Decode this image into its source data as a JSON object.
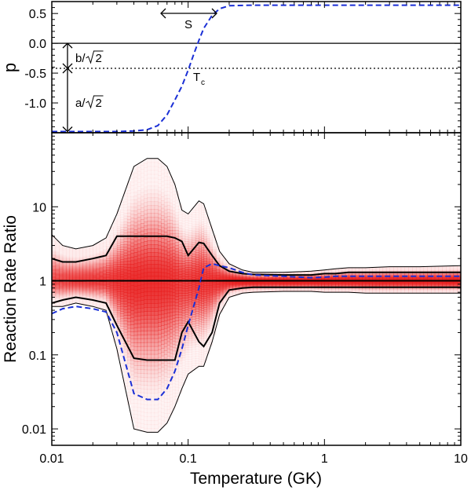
{
  "chart_data": [
    {
      "type": "line",
      "panel": "top",
      "ylabel": "p",
      "yticks": [
        "0.5",
        "0.0",
        "-0.5",
        "-1.0"
      ],
      "ytick_values": [
        0.5,
        0.0,
        -0.5,
        -1.0
      ],
      "ylim": [
        -1.5,
        0.7
      ],
      "xlim": [
        0.01,
        10
      ],
      "xscale": "log",
      "reference_lines": [
        {
          "name": "zero",
          "y": 0.0,
          "style": "solid"
        },
        {
          "name": "offset",
          "y": -0.42,
          "style": "dotted"
        }
      ],
      "series": [
        {
          "name": "p(T)",
          "style": "dashed",
          "color": "#1a2fd6",
          "x": [
            0.01,
            0.015,
            0.02,
            0.03,
            0.04,
            0.05,
            0.06,
            0.07,
            0.08,
            0.09,
            0.1,
            0.11,
            0.12,
            0.13,
            0.15,
            0.17,
            0.2,
            0.3,
            1,
            10
          ],
          "y": [
            -1.48,
            -1.48,
            -1.48,
            -1.48,
            -1.47,
            -1.45,
            -1.38,
            -1.2,
            -0.95,
            -0.72,
            -0.45,
            -0.18,
            0.05,
            0.25,
            0.47,
            0.58,
            0.63,
            0.64,
            0.64,
            0.64
          ]
        }
      ],
      "annotations": [
        {
          "name": "S",
          "text": "S"
        },
        {
          "name": "Tc",
          "text": "T",
          "subscript": "c"
        },
        {
          "name": "b-label",
          "text": "b/",
          "radicand": "2"
        },
        {
          "name": "a-label",
          "text": "a/",
          "radicand": "2"
        }
      ]
    },
    {
      "type": "area",
      "panel": "bottom",
      "xlabel": "Temperature (GK)",
      "ylabel": "Reaction Rate Ratio",
      "xscale": "log",
      "yscale": "log",
      "xlim": [
        0.01,
        10
      ],
      "ylim": [
        0.006,
        100
      ],
      "xticks": [
        "0.01",
        "0.1",
        "1",
        "10"
      ],
      "xtick_values": [
        0.01,
        0.1,
        1,
        10
      ],
      "yticks": [
        "0.01",
        "0.1",
        "1",
        "10"
      ],
      "ytick_values": [
        0.01,
        0.1,
        1,
        10
      ],
      "x": [
        0.01,
        0.012,
        0.015,
        0.02,
        0.025,
        0.03,
        0.04,
        0.05,
        0.06,
        0.07,
        0.08,
        0.09,
        0.1,
        0.12,
        0.13,
        0.15,
        0.17,
        0.2,
        0.25,
        0.3,
        0.5,
        0.8,
        1,
        1.2,
        1.5,
        2,
        3,
        5,
        10
      ],
      "series": [
        {
          "name": "upper-outer",
          "style": "thin",
          "values": [
            4.2,
            3.0,
            2.7,
            3.0,
            3.8,
            8,
            35,
            45,
            45,
            35,
            20,
            9,
            8,
            12,
            11,
            5,
            2.5,
            1.7,
            1.4,
            1.3,
            1.3,
            1.35,
            1.4,
            1.45,
            1.5,
            1.5,
            1.55,
            1.55,
            1.6
          ]
        },
        {
          "name": "upper-median",
          "style": "thick",
          "values": [
            2.0,
            1.8,
            1.8,
            2.0,
            2.2,
            4,
            4,
            4,
            4,
            4,
            3.8,
            3.4,
            2.2,
            3.3,
            3.2,
            2.2,
            1.6,
            1.35,
            1.25,
            1.22,
            1.2,
            1.2,
            1.25,
            1.25,
            1.3,
            1.3,
            1.3,
            1.3,
            1.3
          ]
        },
        {
          "name": "recommended",
          "style": "thick",
          "values": [
            1,
            1,
            1,
            1,
            1,
            1,
            1,
            1,
            1,
            1,
            1,
            1,
            1,
            1,
            1,
            1,
            1,
            1,
            1,
            1,
            1,
            1,
            1,
            1,
            1,
            1,
            1,
            1,
            1
          ]
        },
        {
          "name": "lower-median",
          "style": "thick",
          "values": [
            0.5,
            0.55,
            0.6,
            0.55,
            0.5,
            0.25,
            0.09,
            0.085,
            0.085,
            0.085,
            0.085,
            0.2,
            0.28,
            0.15,
            0.13,
            0.2,
            0.5,
            0.75,
            0.8,
            0.82,
            0.82,
            0.82,
            0.82,
            0.82,
            0.82,
            0.82,
            0.82,
            0.82,
            0.82
          ]
        },
        {
          "name": "lower-outer",
          "style": "thin",
          "values": [
            0.45,
            0.45,
            0.5,
            0.45,
            0.4,
            0.12,
            0.01,
            0.009,
            0.009,
            0.012,
            0.02,
            0.035,
            0.055,
            0.07,
            0.07,
            0.15,
            0.35,
            0.6,
            0.68,
            0.7,
            0.72,
            0.72,
            0.7,
            0.7,
            0.7,
            0.68,
            0.68,
            0.68,
            0.68
          ]
        },
        {
          "name": "dashed-sample",
          "style": "dashed",
          "color": "#1a2fd6",
          "values": [
            0.36,
            0.42,
            0.45,
            0.42,
            0.38,
            0.2,
            0.03,
            0.025,
            0.025,
            0.035,
            0.06,
            0.12,
            0.25,
            0.8,
            1.5,
            1.7,
            1.6,
            1.5,
            1.3,
            1.2,
            1.15,
            1.1,
            1.12,
            1.15,
            1.15,
            1.15,
            1.15,
            1.15,
            1.15
          ]
        }
      ],
      "density": {
        "color": "#e81e1e",
        "peak_intensity": [
          0.75,
          0.75,
          0.78,
          0.82,
          0.85,
          0.95,
          1.0,
          1.0,
          1.0,
          0.98,
          0.95,
          0.9,
          0.9,
          0.95,
          0.95,
          0.95,
          0.95,
          0.95,
          0.95,
          0.95,
          0.95,
          0.95,
          0.95,
          0.95,
          0.95,
          0.95,
          0.95,
          0.95,
          0.95
        ]
      }
    }
  ]
}
